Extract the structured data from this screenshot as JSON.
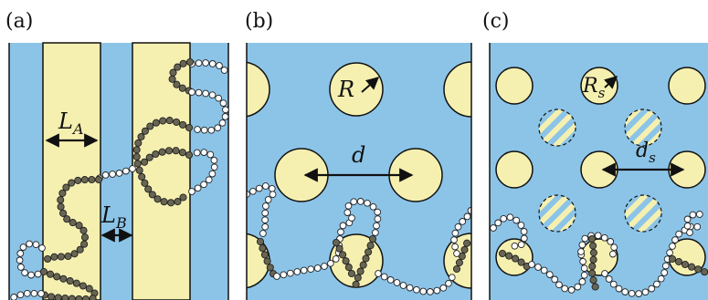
{
  "panels": [
    {
      "id": "a",
      "label": "(a)",
      "labels": {
        "width_a": "L",
        "width_a_sub": "A",
        "width_b": "L",
        "width_b_sub": "B"
      }
    },
    {
      "id": "b",
      "label": "(b)",
      "labels": {
        "radius": "R",
        "spacing": "d"
      }
    },
    {
      "id": "c",
      "label": "(c)",
      "labels": {
        "radius": "R",
        "radius_sub": "s",
        "spacing": "d",
        "spacing_sub": "s"
      }
    }
  ],
  "colors": {
    "matrix_blue": "#8cc4e8",
    "domain_yellow": "#f5f0b0",
    "bead_dark": "#686553",
    "bead_light": "#ffffff",
    "outline": "#111111"
  }
}
